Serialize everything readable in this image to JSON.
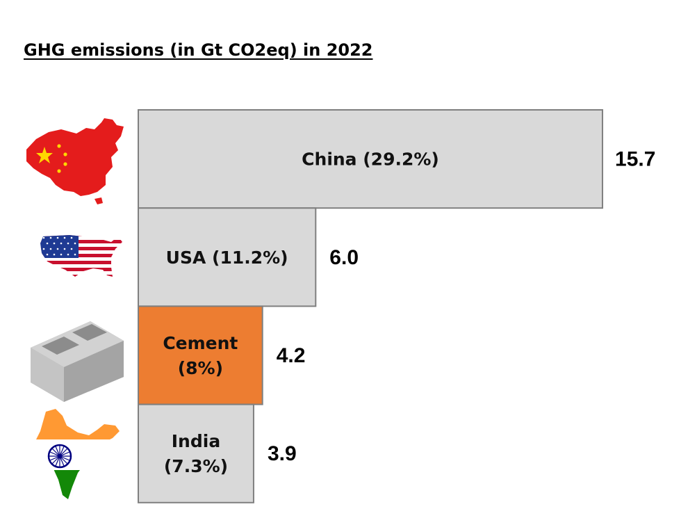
{
  "chart_data": {
    "type": "bar",
    "orientation": "horizontal",
    "title": "GHG emissions (in Gt CO2eq) in 2022",
    "categories": [
      "China (29.2%)",
      "USA (11.2%)",
      "Cement (8%)",
      "India (7.3%)"
    ],
    "category_lines": [
      [
        "China (29.2%)"
      ],
      [
        "USA (11.2%)"
      ],
      [
        "Cement",
        "(8%)"
      ],
      [
        "India",
        "(7.3%)"
      ]
    ],
    "values": [
      15.7,
      6.0,
      4.2,
      3.9
    ],
    "value_labels": [
      "15.7",
      "6.0",
      "4.2",
      "3.9"
    ],
    "bar_colors": [
      "#d9d9d9",
      "#d9d9d9",
      "#ed7d31",
      "#d9d9d9"
    ],
    "border_color": "#7f7f7f",
    "icons": [
      "china-map-flag-icon",
      "usa-map-flag-icon",
      "cement-block-icon",
      "india-map-flag-icon"
    ],
    "grid": false,
    "legend": "none"
  }
}
